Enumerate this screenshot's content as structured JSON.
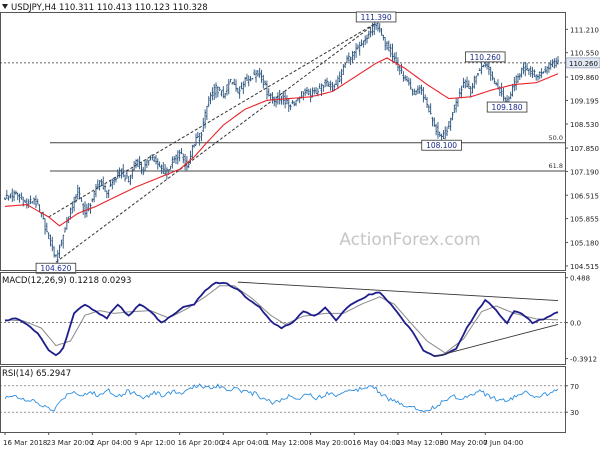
{
  "header": {
    "symbol": "USDJPY,H4",
    "ohlc": "110.311 110.413 110.123 110.328"
  },
  "watermark": "ActionForex.com",
  "colors": {
    "candles": "#27507a",
    "ma": "#e8232b",
    "macd": "#1d1d8c",
    "signal": "#8a8a8a",
    "rsi": "#2f8fe0",
    "grid": "#555555",
    "trend": "#333333",
    "price_tag": "#dfe7f3"
  },
  "chart_data": [
    {
      "type": "candlestick",
      "title": "USDJPY,H4",
      "ohlc_text": "110.311 110.413 110.123 110.328",
      "y_ticks": [
        "111.210",
        "110.550",
        "109.860",
        "109.195",
        "108.530",
        "107.850",
        "107.190",
        "106.515",
        "105.855",
        "105.180",
        "104.515"
      ],
      "ylim": [
        104.4,
        111.7
      ],
      "last_price": "110.260",
      "close_path": [
        [
          0,
          106.45
        ],
        [
          6,
          106.55
        ],
        [
          12,
          106.25
        ],
        [
          16,
          106.4
        ],
        [
          20,
          105.95
        ],
        [
          24,
          105.3
        ],
        [
          28,
          104.75
        ],
        [
          32,
          105.4
        ],
        [
          36,
          106.1
        ],
        [
          40,
          106.65
        ],
        [
          44,
          106.0
        ],
        [
          48,
          106.4
        ],
        [
          52,
          106.95
        ],
        [
          56,
          106.6
        ],
        [
          60,
          106.95
        ],
        [
          64,
          107.2
        ],
        [
          68,
          106.9
        ],
        [
          72,
          107.5
        ],
        [
          76,
          107.2
        ],
        [
          80,
          107.65
        ],
        [
          84,
          107.35
        ],
        [
          88,
          107.15
        ],
        [
          92,
          107.45
        ],
        [
          96,
          107.75
        ],
        [
          100,
          107.3
        ],
        [
          104,
          108.0
        ],
        [
          108,
          108.3
        ],
        [
          112,
          109.25
        ],
        [
          116,
          109.55
        ],
        [
          120,
          109.35
        ],
        [
          124,
          109.75
        ],
        [
          128,
          109.45
        ],
        [
          132,
          109.75
        ],
        [
          136,
          109.9
        ],
        [
          140,
          110.0
        ],
        [
          144,
          109.45
        ],
        [
          148,
          109.2
        ],
        [
          152,
          109.3
        ],
        [
          156,
          109.05
        ],
        [
          160,
          109.2
        ],
        [
          164,
          109.45
        ],
        [
          168,
          109.35
        ],
        [
          172,
          109.5
        ],
        [
          176,
          109.7
        ],
        [
          180,
          109.55
        ],
        [
          184,
          109.85
        ],
        [
          188,
          110.35
        ],
        [
          192,
          110.55
        ],
        [
          196,
          110.75
        ],
        [
          200,
          111.05
        ],
        [
          204,
          111.39
        ],
        [
          208,
          110.9
        ],
        [
          212,
          110.6
        ],
        [
          216,
          110.15
        ],
        [
          220,
          109.8
        ],
        [
          224,
          109.4
        ],
        [
          228,
          109.55
        ],
        [
          232,
          109.1
        ],
        [
          236,
          108.45
        ],
        [
          240,
          108.1
        ],
        [
          244,
          108.5
        ],
        [
          248,
          109.2
        ],
        [
          252,
          109.7
        ],
        [
          256,
          109.5
        ],
        [
          260,
          110.0
        ],
        [
          264,
          110.26
        ],
        [
          268,
          109.85
        ],
        [
          272,
          109.5
        ],
        [
          276,
          109.18
        ],
        [
          280,
          109.7
        ],
        [
          284,
          110.05
        ],
        [
          288,
          110.1
        ],
        [
          292,
          109.9
        ],
        [
          296,
          110.0
        ],
        [
          300,
          110.2
        ],
        [
          304,
          110.33
        ]
      ],
      "ma_path": [
        [
          0,
          106.2
        ],
        [
          12,
          106.25
        ],
        [
          24,
          105.9
        ],
        [
          30,
          105.65
        ],
        [
          40,
          106.0
        ],
        [
          50,
          106.2
        ],
        [
          60,
          106.45
        ],
        [
          72,
          106.75
        ],
        [
          84,
          107.0
        ],
        [
          96,
          107.25
        ],
        [
          104,
          107.6
        ],
        [
          110,
          107.95
        ],
        [
          120,
          108.5
        ],
        [
          132,
          108.95
        ],
        [
          144,
          109.2
        ],
        [
          156,
          109.25
        ],
        [
          168,
          109.3
        ],
        [
          180,
          109.45
        ],
        [
          192,
          109.85
        ],
        [
          204,
          110.25
        ],
        [
          210,
          110.4
        ],
        [
          220,
          110.1
        ],
        [
          232,
          109.65
        ],
        [
          244,
          109.25
        ],
        [
          256,
          109.3
        ],
        [
          268,
          109.5
        ],
        [
          280,
          109.65
        ],
        [
          292,
          109.7
        ],
        [
          304,
          109.95
        ]
      ],
      "annotations": [
        {
          "label": "111.390",
          "x": 204,
          "y": 111.39,
          "anchor": "top"
        },
        {
          "label": "110.260",
          "x": 264,
          "y": 110.26,
          "anchor": "top"
        },
        {
          "label": "109.180",
          "x": 276,
          "y": 109.18,
          "anchor": "bottom"
        },
        {
          "label": "108.100",
          "x": 240,
          "y": 108.1,
          "anchor": "bottom"
        },
        {
          "label": "104.620",
          "x": 28,
          "y": 104.62,
          "anchor": "bottom"
        }
      ],
      "fib_levels": [
        {
          "label": "50.0",
          "value": 108.0
        },
        {
          "label": "61.8",
          "value": 107.2
        }
      ],
      "channel": [
        {
          "from": [
            28,
            104.62
          ],
          "to": [
            204,
            111.39
          ]
        },
        {
          "from": [
            24,
            105.9
          ],
          "to": [
            204,
            111.39
          ]
        }
      ]
    },
    {
      "type": "line",
      "title": "MACD(12,26,9) 0.1218 0.0293",
      "y_ticks": [
        "0.488",
        "0.0",
        "-0.3912"
      ],
      "ylim": [
        -0.45,
        0.55
      ],
      "series": [
        {
          "name": "MACD",
          "points": [
            [
              0,
              0.02
            ],
            [
              6,
              0.05
            ],
            [
              12,
              -0.02
            ],
            [
              18,
              -0.12
            ],
            [
              24,
              -0.3
            ],
            [
              28,
              -0.36
            ],
            [
              32,
              -0.28
            ],
            [
              38,
              0.1
            ],
            [
              44,
              0.2
            ],
            [
              50,
              0.12
            ],
            [
              56,
              0.05
            ],
            [
              62,
              0.2
            ],
            [
              68,
              0.07
            ],
            [
              74,
              0.2
            ],
            [
              80,
              0.12
            ],
            [
              86,
              0.0
            ],
            [
              92,
              0.08
            ],
            [
              98,
              0.17
            ],
            [
              104,
              0.2
            ],
            [
              110,
              0.35
            ],
            [
              116,
              0.44
            ],
            [
              122,
              0.42
            ],
            [
              128,
              0.36
            ],
            [
              134,
              0.25
            ],
            [
              140,
              0.17
            ],
            [
              146,
              0.02
            ],
            [
              152,
              -0.06
            ],
            [
              158,
              0.0
            ],
            [
              164,
              0.12
            ],
            [
              170,
              0.07
            ],
            [
              176,
              0.16
            ],
            [
              182,
              0.03
            ],
            [
              188,
              0.16
            ],
            [
              194,
              0.24
            ],
            [
              200,
              0.3
            ],
            [
              206,
              0.33
            ],
            [
              212,
              0.2
            ],
            [
              218,
              0.05
            ],
            [
              224,
              -0.1
            ],
            [
              230,
              -0.3
            ],
            [
              236,
              -0.36
            ],
            [
              242,
              -0.35
            ],
            [
              248,
              -0.28
            ],
            [
              254,
              -0.06
            ],
            [
              260,
              0.14
            ],
            [
              264,
              0.24
            ],
            [
              268,
              0.18
            ],
            [
              272,
              0.08
            ],
            [
              276,
              0.0
            ],
            [
              280,
              0.13
            ],
            [
              284,
              0.1
            ],
            [
              290,
              0.0
            ],
            [
              296,
              0.04
            ],
            [
              304,
              0.12
            ]
          ]
        },
        {
          "name": "Signal",
          "points": [
            [
              0,
              0.03
            ],
            [
              10,
              0.02
            ],
            [
              20,
              -0.06
            ],
            [
              28,
              -0.25
            ],
            [
              36,
              -0.2
            ],
            [
              44,
              0.08
            ],
            [
              52,
              0.13
            ],
            [
              60,
              0.1
            ],
            [
              70,
              0.12
            ],
            [
              80,
              0.13
            ],
            [
              90,
              0.05
            ],
            [
              100,
              0.15
            ],
            [
              110,
              0.28
            ],
            [
              118,
              0.4
            ],
            [
              126,
              0.4
            ],
            [
              136,
              0.26
            ],
            [
              146,
              0.08
            ],
            [
              154,
              -0.02
            ],
            [
              164,
              0.07
            ],
            [
              176,
              0.1
            ],
            [
              186,
              0.1
            ],
            [
              196,
              0.2
            ],
            [
              206,
              0.28
            ],
            [
              214,
              0.2
            ],
            [
              222,
              0.02
            ],
            [
              232,
              -0.2
            ],
            [
              242,
              -0.33
            ],
            [
              252,
              -0.18
            ],
            [
              262,
              0.12
            ],
            [
              270,
              0.18
            ],
            [
              280,
              0.1
            ],
            [
              292,
              0.04
            ],
            [
              304,
              0.03
            ]
          ]
        }
      ],
      "trendlines": [
        {
          "from": [
            128,
            0.44
          ],
          "to": [
            304,
            0.24
          ]
        },
        {
          "from": [
            236,
            -0.37
          ],
          "to": [
            304,
            -0.02
          ]
        }
      ]
    },
    {
      "type": "line",
      "title": "RSI(14) 65.2947",
      "y_ticks": [
        "70",
        "30"
      ],
      "ylim": [
        0,
        100
      ],
      "levels": [
        70,
        30
      ],
      "series": [
        {
          "name": "RSI",
          "points": [
            [
              0,
              50
            ],
            [
              5,
              58
            ],
            [
              10,
              48
            ],
            [
              16,
              46
            ],
            [
              22,
              38
            ],
            [
              27,
              32
            ],
            [
              32,
              52
            ],
            [
              37,
              62
            ],
            [
              42,
              56
            ],
            [
              47,
              60
            ],
            [
              52,
              55
            ],
            [
              57,
              64
            ],
            [
              62,
              54
            ],
            [
              67,
              62
            ],
            [
              72,
              58
            ],
            [
              77,
              52
            ],
            [
              82,
              60
            ],
            [
              87,
              55
            ],
            [
              92,
              62
            ],
            [
              97,
              58
            ],
            [
              102,
              65
            ],
            [
              107,
              72
            ],
            [
              112,
              66
            ],
            [
              117,
              71
            ],
            [
              122,
              64
            ],
            [
              127,
              68
            ],
            [
              132,
              60
            ],
            [
              137,
              58
            ],
            [
              142,
              52
            ],
            [
              147,
              45
            ],
            [
              152,
              48
            ],
            [
              157,
              55
            ],
            [
              162,
              52
            ],
            [
              167,
              58
            ],
            [
              172,
              50
            ],
            [
              177,
              60
            ],
            [
              182,
              55
            ],
            [
              187,
              64
            ],
            [
              192,
              62
            ],
            [
              197,
              68
            ],
            [
              202,
              72
            ],
            [
              206,
              60
            ],
            [
              211,
              50
            ],
            [
              216,
              44
            ],
            [
              221,
              40
            ],
            [
              226,
              36
            ],
            [
              231,
              32
            ],
            [
              236,
              38
            ],
            [
              241,
              46
            ],
            [
              246,
              55
            ],
            [
              251,
              50
            ],
            [
              256,
              58
            ],
            [
              261,
              62
            ],
            [
              266,
              55
            ],
            [
              271,
              48
            ],
            [
              276,
              46
            ],
            [
              281,
              55
            ],
            [
              286,
              60
            ],
            [
              291,
              50
            ],
            [
              296,
              56
            ],
            [
              300,
              60
            ],
            [
              304,
              65.29
            ]
          ]
        }
      ]
    }
  ],
  "x_axis": {
    "labels": [
      "16 Mar 2018",
      "23 Mar 20:00",
      "2 Apr 04:00",
      "9 Apr 12:00",
      "16 Apr 20:00",
      "24 Apr 04:00",
      "1 May 12:00",
      "8 May 20:00",
      "16 May 04:00",
      "23 May 12:00",
      "30 May 20:00",
      "7 Jun 04:00"
    ],
    "positions": [
      0,
      24,
      48,
      72,
      96,
      120,
      144,
      168,
      192,
      216,
      240,
      264
    ]
  }
}
